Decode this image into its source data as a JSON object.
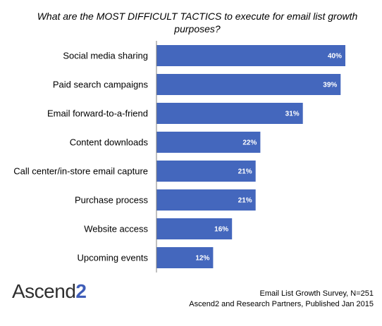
{
  "chart_data": {
    "type": "bar",
    "orientation": "horizontal",
    "title": "What are the MOST DIFFICULT TACTICS to execute for email list growth purposes?",
    "xlabel": "",
    "ylabel": "",
    "xlim": [
      0,
      40
    ],
    "grid": false,
    "legend": "none",
    "bar_color": "#4467bd",
    "categories": [
      "Social media sharing",
      "Paid search campaigns",
      "Email forward-to-a-friend",
      "Content downloads",
      "Call center/in-store email capture",
      "Purchase process",
      "Website access",
      "Upcoming events"
    ],
    "values": [
      40,
      39,
      31,
      22,
      21,
      21,
      16,
      12
    ],
    "value_labels": [
      "40%",
      "39%",
      "31%",
      "22%",
      "21%",
      "21%",
      "16%",
      "12%"
    ]
  },
  "logo": {
    "text": "Ascend",
    "number": "2"
  },
  "source": {
    "line1": "Email List Growth Survey, N=251",
    "line2": "Ascend2 and Research Partners, Published Jan 2015"
  }
}
